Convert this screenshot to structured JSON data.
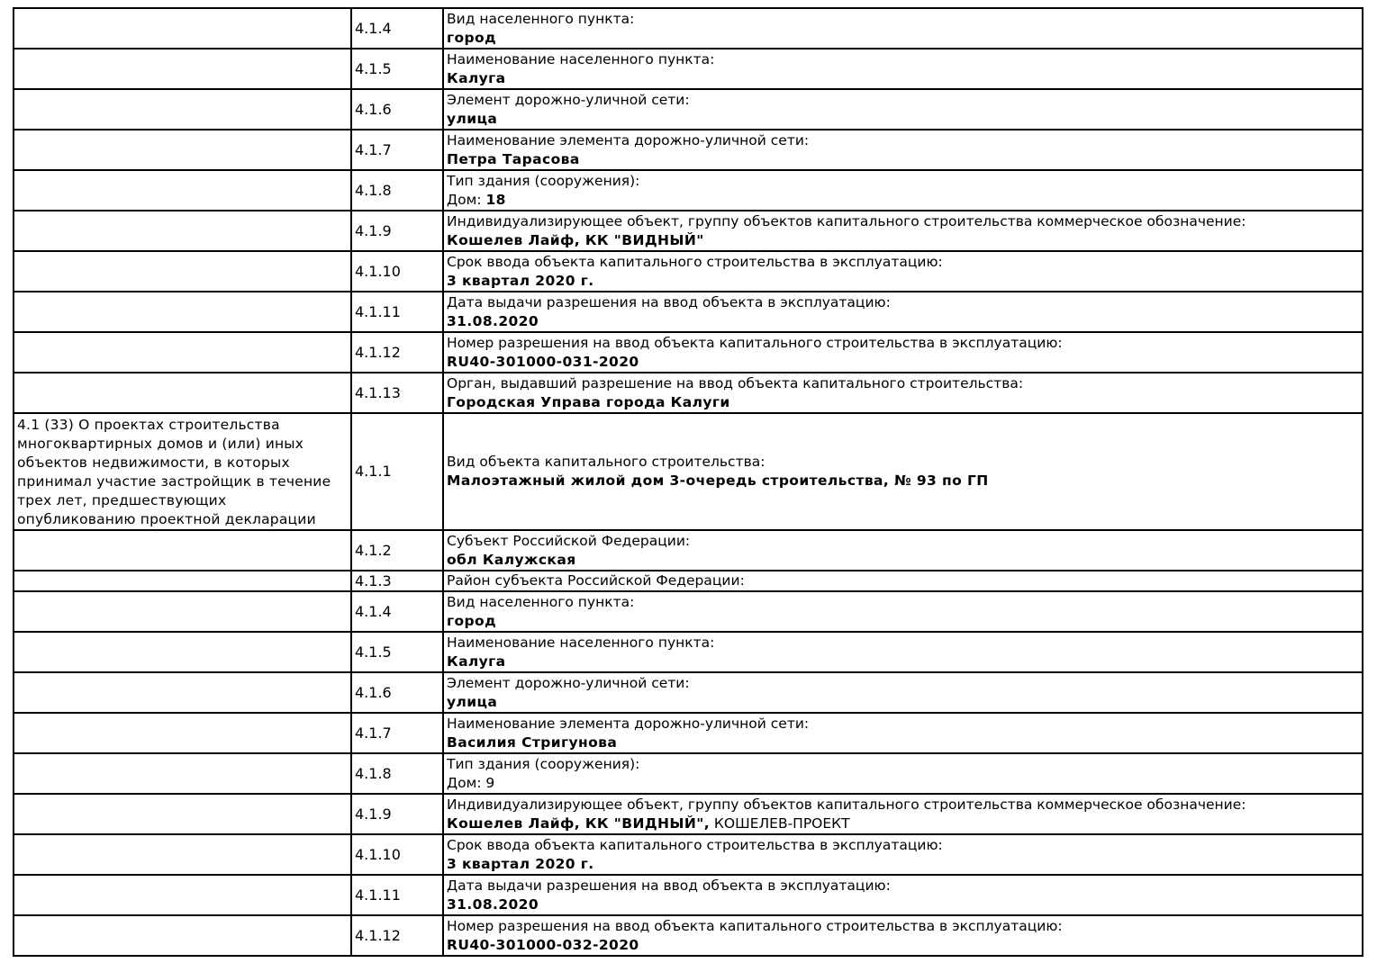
{
  "document": {
    "language": "ru",
    "type": "project-declaration-table",
    "section_heading": "4.1 (33) О проектах строительства многоквартирных домов и (или) иных объектов недвижимости, в которых принимал участие застройщик в течение трех лет, предшествующих опубликованию проектной декларации",
    "rows": [
      {
        "section": "",
        "code": "4.1.4",
        "label": "Вид населенного пункта:",
        "value_parts": [
          {
            "t": "город",
            "b": true
          }
        ],
        "size": "std"
      },
      {
        "section": "",
        "code": "4.1.5",
        "label": "Наименование населенного пункта:",
        "value_parts": [
          {
            "t": "Калуга",
            "b": true
          }
        ],
        "size": "std"
      },
      {
        "section": "",
        "code": "4.1.6",
        "label": "Элемент дорожно-уличной сети:",
        "value_parts": [
          {
            "t": "улица",
            "b": true
          }
        ],
        "size": "std"
      },
      {
        "section": "",
        "code": "4.1.7",
        "label": "Наименование элемента дорожно-уличной сети:",
        "value_parts": [
          {
            "t": "Петра Тарасова",
            "b": true
          }
        ],
        "size": "std"
      },
      {
        "section": "",
        "code": "4.1.8",
        "label": "Тип здания (сооружения):",
        "value_parts": [
          {
            "t": "Дом: ",
            "b": false
          },
          {
            "t": "18",
            "b": true
          }
        ],
        "size": "std"
      },
      {
        "section": "",
        "code": "4.1.9",
        "label": "Индивидуализирующее объект, группу объектов капитального строительства коммерческое обозначение:",
        "value_parts": [
          {
            "t": "Кошелев Лайф, КК \"ВИДНЫЙ\"",
            "b": true
          }
        ],
        "size": "std"
      },
      {
        "section": "",
        "code": "4.1.10",
        "label": "Срок ввода объекта капитального строительства в эксплуатацию:",
        "value_parts": [
          {
            "t": "3 квартал 2020 г.",
            "b": true
          }
        ],
        "size": "std"
      },
      {
        "section": "",
        "code": "4.1.11",
        "label": "Дата выдачи разрешения на ввод объекта в эксплуатацию:",
        "value_parts": [
          {
            "t": "31.08.2020",
            "b": true
          }
        ],
        "size": "std"
      },
      {
        "section": "",
        "code": "4.1.12",
        "label": "Номер разрешения на ввод объекта капитального строительства в эксплуатацию:",
        "value_parts": [
          {
            "t": "RU40-301000-031-2020",
            "b": true
          }
        ],
        "size": "std"
      },
      {
        "section": "",
        "code": "4.1.13",
        "label": "Орган, выдавший разрешение на ввод объекта капитального строительства:",
        "value_parts": [
          {
            "t": "Городская Управа города Калуги",
            "b": true
          }
        ],
        "size": "std"
      },
      {
        "section": "4.1 (33) О проектах строительства многоквартирных домов и (или) иных объектов недвижимости, в которых принимал участие застройщик в течение трех лет, предшествующих опубликованию проектной декларации",
        "code": "4.1.1",
        "label": "Вид объекта капитального строительства:",
        "value_parts": [
          {
            "t": "Малоэтажный жилой дом 3-очередь строительства, № 93 по ГП",
            "b": true
          }
        ],
        "size": "tall"
      },
      {
        "section": "",
        "code": "4.1.2",
        "label": "Субъект Российской Федерации:",
        "value_parts": [
          {
            "t": "обл Калужская",
            "b": true
          }
        ],
        "size": "std"
      },
      {
        "section": "",
        "code": "4.1.3",
        "label": "Район субъекта Российской Федерации:",
        "value_parts": [],
        "size": "single"
      },
      {
        "section": "",
        "code": "4.1.4",
        "label": "Вид населенного пункта:",
        "value_parts": [
          {
            "t": "город",
            "b": true
          }
        ],
        "size": "std"
      },
      {
        "section": "",
        "code": "4.1.5",
        "label": "Наименование населенного пункта:",
        "value_parts": [
          {
            "t": "Калуга",
            "b": true
          }
        ],
        "size": "std"
      },
      {
        "section": "",
        "code": "4.1.6",
        "label": "Элемент дорожно-уличной сети:",
        "value_parts": [
          {
            "t": "улица",
            "b": true
          }
        ],
        "size": "std"
      },
      {
        "section": "",
        "code": "4.1.7",
        "label": "Наименование элемента дорожно-уличной сети:",
        "value_parts": [
          {
            "t": "Василия Стригунова",
            "b": true
          }
        ],
        "size": "std"
      },
      {
        "section": "",
        "code": "4.1.8",
        "label": "Тип здания (сооружения):",
        "value_parts": [
          {
            "t": "Дом: 9",
            "b": false
          }
        ],
        "size": "std"
      },
      {
        "section": "",
        "code": "4.1.9",
        "label": "Индивидуализирующее объект, группу объектов капитального строительства коммерческое обозначение:",
        "value_parts": [
          {
            "t": "Кошелев Лайф, КК \"ВИДНЫЙ\",",
            "b": true
          },
          {
            "t": " КОШЕЛЕВ-ПРОЕКТ",
            "b": false
          }
        ],
        "size": "std"
      },
      {
        "section": "",
        "code": "4.1.10",
        "label": "Срок ввода объекта капитального строительства в эксплуатацию:",
        "value_parts": [
          {
            "t": "3 квартал 2020 г.",
            "b": true
          }
        ],
        "size": "std"
      },
      {
        "section": "",
        "code": "4.1.11",
        "label": "Дата выдачи разрешения на ввод объекта в эксплуатацию:",
        "value_parts": [
          {
            "t": "31.08.2020",
            "b": true
          }
        ],
        "size": "std"
      },
      {
        "section": "",
        "code": "4.1.12",
        "label": "Номер разрешения на ввод объекта капитального строительства в эксплуатацию:",
        "value_parts": [
          {
            "t": "RU40-301000-032-2020",
            "b": true
          }
        ],
        "size": "std"
      }
    ]
  }
}
